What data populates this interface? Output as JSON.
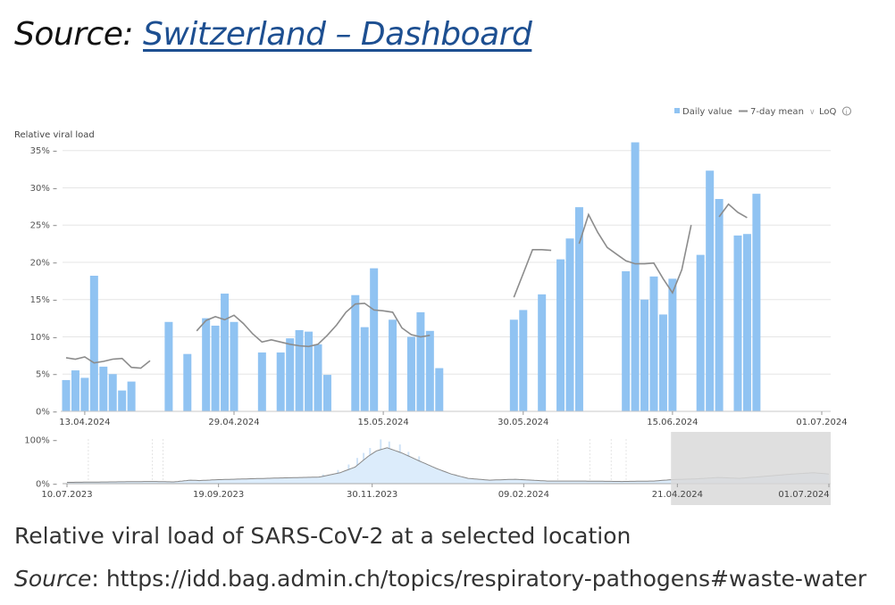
{
  "header": {
    "source_label": "Source:",
    "link_text": "Switzerland – Dashboard"
  },
  "caption": "Relative viral load of SARS-CoV-2 at a selected location",
  "source_line": {
    "label": "Source",
    "sep": ":",
    "url": "https://idd.bag.admin.ch/topics/respiratory-pathogens#waste-water"
  },
  "colors": {
    "bar": "#90c3f2",
    "line": "#8c8c8c",
    "navigator_mask": "#d9d9d9",
    "grid": "#e6e6e6",
    "brand_link": "#1d4f91"
  },
  "chart_data": [
    {
      "type": "bar",
      "ylabel": "Relative viral load",
      "ylim": [
        0,
        37
      ],
      "y_ticks": [
        "0%",
        "5%",
        "10%",
        "15%",
        "20%",
        "25%",
        "30%",
        "35%"
      ],
      "x_ticks": [
        "13.04.2024",
        "29.04.2024",
        "15.05.2024",
        "30.05.2024",
        "15.06.2024",
        "01.07.2024"
      ],
      "x_tick_days": [
        2,
        18,
        34,
        49,
        65,
        81
      ],
      "xlim": [
        0,
        81
      ],
      "legend": {
        "position": "top-right",
        "items": [
          "Daily value",
          "7-day mean",
          "LoQ"
        ]
      },
      "series": [
        {
          "name": "Daily value",
          "kind": "bar",
          "day": [
            0,
            1,
            2,
            3,
            4,
            5,
            6,
            7,
            11,
            13,
            15,
            16,
            17,
            18,
            21,
            23,
            24,
            25,
            26,
            27,
            28,
            31,
            32,
            33,
            35,
            37,
            38,
            39,
            40,
            48,
            49,
            51,
            53,
            54,
            55,
            60,
            61,
            62,
            63,
            64,
            65,
            68,
            69,
            70,
            72,
            73,
            74
          ],
          "values": [
            4.2,
            5.5,
            4.5,
            18.2,
            6,
            5,
            2.8,
            4,
            12,
            7.7,
            12.5,
            11.5,
            15.8,
            12,
            7.9,
            7.9,
            9.8,
            10.9,
            10.7,
            9,
            4.9,
            15.6,
            11.3,
            19.2,
            12.3,
            10,
            13.3,
            10.8,
            5.8,
            12.3,
            13.6,
            15.7,
            20.4,
            23.2,
            27.4,
            18.8,
            36.1,
            15,
            18.1,
            13,
            17.8,
            21,
            32.3,
            28.5,
            23.6,
            23.8,
            29.2
          ]
        },
        {
          "name": "7-day mean",
          "kind": "line",
          "segments": [
            {
              "day": [
                0,
                1,
                2,
                3,
                4,
                5,
                6,
                7,
                8,
                9
              ],
              "values": [
                7.2,
                7,
                7.3,
                6.5,
                6.7,
                7,
                7.1,
                5.9,
                5.8,
                6.8
              ]
            },
            {
              "day": [
                14,
                15,
                16,
                17,
                18,
                19,
                20,
                21,
                22,
                23,
                24,
                25,
                26,
                27,
                28,
                29,
                30,
                31,
                32,
                33,
                34,
                35,
                36,
                37,
                38,
                39
              ],
              "values": [
                10.8,
                12.2,
                12.7,
                12.3,
                12.9,
                11.8,
                10.4,
                9.3,
                9.6,
                9.3,
                9.0,
                8.8,
                8.7,
                9.0,
                10.2,
                11.6,
                13.3,
                14.4,
                14.5,
                13.6,
                13.5,
                13.3,
                11.2,
                10.3,
                10.0,
                10.2
              ]
            },
            {
              "day": [
                48,
                49,
                50,
                51,
                52
              ],
              "values": [
                15.3,
                18.5,
                21.7,
                21.7,
                21.6
              ]
            },
            {
              "day": [
                55,
                56,
                57,
                58,
                59,
                60,
                61,
                62,
                63,
                64,
                65,
                66,
                67
              ],
              "values": [
                22.5,
                26.4,
                24.0,
                22.0,
                21.1,
                20.2,
                19.8,
                19.8,
                19.9,
                17.8,
                15.9,
                19.0,
                25.0
              ]
            },
            {
              "day": [
                70,
                71,
                72,
                73
              ],
              "values": [
                26.1,
                27.8,
                26.7,
                26.0
              ]
            }
          ]
        }
      ]
    },
    {
      "type": "area",
      "role": "navigator",
      "y_ticks": [
        "0%",
        "100%"
      ],
      "ylim": [
        0,
        110
      ],
      "x_ticks": [
        "10.07.2023",
        "19.09.2023",
        "30.11.2023",
        "09.02.2024",
        "21.04.2024",
        "01.07.2024"
      ],
      "x_tick_index": [
        0,
        71,
        143,
        214,
        286,
        357
      ],
      "selected_range_start": 283,
      "series": [
        {
          "name": "7-day mean",
          "anchors_index": [
            0,
            20,
            40,
            50,
            58,
            62,
            70,
            85,
            100,
            118,
            128,
            135,
            141,
            145,
            150,
            157,
            165,
            173,
            180,
            188,
            198,
            210,
            225,
            240,
            260,
            275,
            283,
            295,
            305,
            315,
            330,
            340,
            350,
            357
          ],
          "anchors_value": [
            3,
            4,
            5,
            4,
            8,
            7,
            9,
            11,
            13,
            15,
            25,
            38,
            62,
            75,
            82,
            70,
            52,
            35,
            22,
            12,
            8,
            10,
            6,
            6,
            5,
            6,
            9,
            11,
            14,
            12,
            18,
            22,
            25,
            22
          ]
        }
      ]
    }
  ]
}
